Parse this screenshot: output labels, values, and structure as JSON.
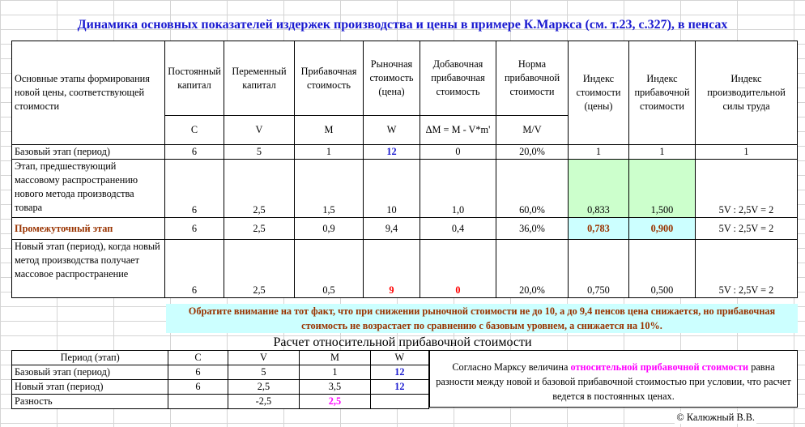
{
  "title": "Динамика основных показателей издержек производства и цены в примере К.Маркса (см. т.23, с.327), в пенсах",
  "header": {
    "stage": "Основные этапы формирования новой цены, соответствующей стоимости",
    "c_top": "Постоянный капитал",
    "v_top": "Переменный капитал",
    "m_top": "Прибавочная стоимость",
    "w_top": "Рыночная стоимость (цена)",
    "dm_top": "Добавочная прибавочная стоимость",
    "norm_top": "Норма прибавочной стоимости",
    "idx_price": "Индекс стоимости (цены)",
    "idx_surplus": "Индекс прибавочной стоимости",
    "idx_prod": "Индекс производительной силы труда",
    "c_sym": "C",
    "v_sym": "V",
    "m_sym": "M",
    "w_sym": "W",
    "dm_sym": "ΔM = M - V*m'",
    "norm_sym": "M/V"
  },
  "rows": [
    {
      "stage": "Базовый этап (период)",
      "c": "6",
      "v": "5",
      "m": "1",
      "w": "12",
      "dm": "0",
      "norm": "20,0%",
      "idx_price": "1",
      "idx_surplus": "1",
      "idx_prod": "1"
    },
    {
      "stage": "Этап, предшествующий массовому распространению нового метода производства товара",
      "c": "6",
      "v": "2,5",
      "m": "1,5",
      "w": "10",
      "dm": "1,0",
      "norm": "60,0%",
      "idx_price": "0,833",
      "idx_surplus": "1,500",
      "idx_prod": "5V : 2,5V = 2"
    },
    {
      "stage": "Промежуточный этап",
      "c": "6",
      "v": "2,5",
      "m": "0,9",
      "w": "9,4",
      "dm": "0,4",
      "norm": "36,0%",
      "idx_price": "0,783",
      "idx_surplus": "0,900",
      "idx_prod": "5V : 2,5V = 2"
    },
    {
      "stage": "Новый этап (период), когда новый метод производства получает массовое распространение",
      "c": "6",
      "v": "2,5",
      "m": "0,5",
      "w": "9",
      "dm": "0",
      "norm": "20,0%",
      "idx_price": "0,750",
      "idx_surplus": "0,500",
      "idx_prod": "5V : 2,5V = 2"
    }
  ],
  "note": "Обратите внимание на тот факт, что при снижении рыночной стоимости не до 10, а до 9,4 пенсов цена снижается, но прибавочная стоимость не возрастает по сравнению с базовым уровнем, а снижается на 10%.",
  "subtitle": "Расчет относительной прибавочной стоимости",
  "calc": {
    "headers": [
      "Период (этап)",
      "C",
      "V",
      "M",
      "W"
    ],
    "rows": [
      {
        "stage": "Базовый этап (период)",
        "c": "6",
        "v": "5",
        "m": "1",
        "w": "12"
      },
      {
        "stage": "Новый этап (период)",
        "c": "6",
        "v": "2,5",
        "m": "3,5",
        "w": "12"
      },
      {
        "stage": "Разность",
        "c": "",
        "v": "-2,5",
        "m": "2,5",
        "w": ""
      }
    ]
  },
  "explain": {
    "part1": "Согласно Марксу величина ",
    "highlight": "относительной прибавочной стоимости",
    "part2": " равна разности между новой и базовой прибавочной стоимостью при условии, что расчет ведется в постоянных ценах."
  },
  "copyright": "© Калюжный В.В."
}
